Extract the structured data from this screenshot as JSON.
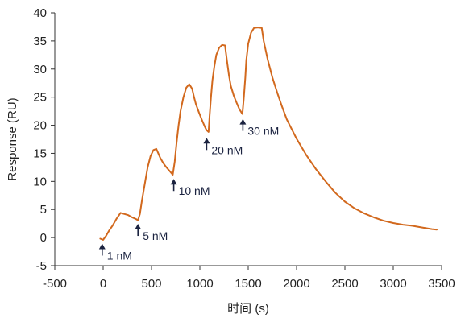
{
  "chart_data": {
    "type": "line",
    "title": "",
    "xlabel": "时间 (s)",
    "ylabel": "Response (RU)",
    "xlim": [
      -500,
      3500
    ],
    "ylim": [
      -5,
      40
    ],
    "xticks": [
      -500,
      0,
      500,
      1000,
      1500,
      2000,
      2500,
      3000,
      3500
    ],
    "yticks": [
      -5,
      0,
      5,
      10,
      15,
      20,
      25,
      30,
      35,
      40
    ],
    "grid": false,
    "legend": "none",
    "series": [
      {
        "color": "#d2691e",
        "x": [
          -30,
          0,
          30,
          60,
          100,
          140,
          180,
          220,
          260,
          300,
          340,
          360,
          380,
          400,
          430,
          460,
          490,
          520,
          550,
          570,
          590,
          620,
          650,
          680,
          700,
          720,
          740,
          760,
          780,
          800,
          830,
          860,
          890,
          920,
          940,
          960,
          990,
          1020,
          1050,
          1070,
          1090,
          1100,
          1115,
          1130,
          1150,
          1170,
          1200,
          1230,
          1260,
          1280,
          1300,
          1320,
          1350,
          1380,
          1410,
          1440,
          1455,
          1470,
          1480,
          1500,
          1530,
          1560,
          1600,
          1640,
          1660,
          1700,
          1750,
          1800,
          1850,
          1900,
          2000,
          2100,
          2200,
          2300,
          2400,
          2500,
          2600,
          2700,
          2800,
          2900,
          3000,
          3100,
          3200,
          3300,
          3400,
          3450
        ],
        "y": [
          -0.2,
          -0.4,
          0.3,
          1.2,
          2.2,
          3.4,
          4.4,
          4.2,
          4.0,
          3.6,
          3.3,
          3.1,
          4.2,
          6.5,
          9.5,
          12.5,
          14.5,
          15.6,
          15.8,
          15.0,
          14.2,
          13.3,
          12.6,
          12.0,
          11.6,
          11.2,
          13.5,
          17.0,
          20.0,
          22.5,
          25.0,
          26.7,
          27.3,
          26.5,
          25.0,
          23.7,
          22.3,
          21.0,
          19.8,
          19.1,
          18.8,
          21.5,
          25.0,
          28.0,
          30.5,
          32.5,
          33.8,
          34.3,
          34.2,
          31.5,
          29.0,
          27.0,
          25.3,
          24.0,
          22.8,
          22.0,
          25.0,
          28.5,
          31.5,
          34.5,
          36.5,
          37.3,
          37.4,
          37.3,
          35.0,
          31.8,
          28.5,
          25.8,
          23.3,
          21.0,
          17.6,
          14.7,
          12.2,
          10.0,
          8.0,
          6.4,
          5.2,
          4.3,
          3.6,
          3.0,
          2.6,
          2.3,
          2.1,
          1.8,
          1.5,
          1.4
        ]
      }
    ],
    "annotations": [
      {
        "text": "1 nM",
        "x": -10,
        "y": -1.2
      },
      {
        "text": "5 nM",
        "x": 360,
        "y": 2.3
      },
      {
        "text": "10 nM",
        "x": 730,
        "y": 10.3
      },
      {
        "text": "20 nM",
        "x": 1070,
        "y": 17.6
      },
      {
        "text": "30 nM",
        "x": 1445,
        "y": 21.0
      }
    ]
  }
}
